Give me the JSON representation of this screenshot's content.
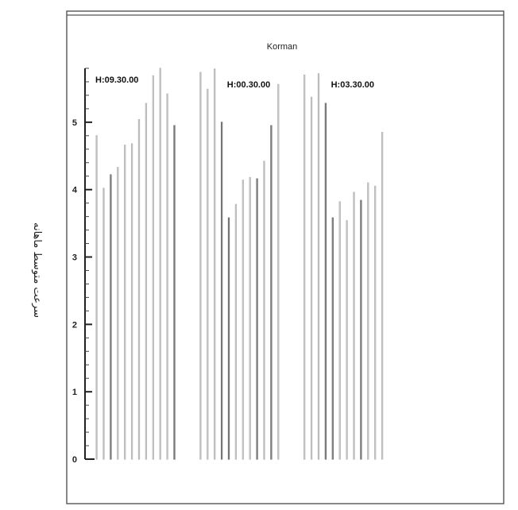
{
  "chart_data": {
    "type": "bar",
    "title": "Korman",
    "ylabel": "سرعت متوسط ماهانه",
    "xlabel": "",
    "ylim": [
      0,
      5.8
    ],
    "yticks": [
      0,
      1,
      2,
      3,
      4,
      5
    ],
    "grid": false,
    "groups": [
      {
        "label": "H:09.30.00",
        "values": [
          4.8,
          4.02,
          4.22,
          4.33,
          4.66,
          4.68,
          5.04,
          5.28,
          5.69,
          5.8,
          5.42,
          4.95
        ]
      },
      {
        "label": "H:00.30.00",
        "values": [
          5.74,
          5.49,
          5.79,
          5.0,
          3.58,
          3.78,
          4.14,
          4.18,
          4.16,
          4.42,
          4.95,
          5.56
        ]
      },
      {
        "label": "H:03.30.00",
        "values": [
          5.7,
          5.37,
          5.72,
          5.28,
          3.58,
          3.82,
          3.54,
          3.96,
          3.84,
          4.1,
          4.05,
          4.85
        ]
      }
    ],
    "colors": {
      "light": "#b8b8b8",
      "dark": "#6e6e6e",
      "axis": "#222222"
    },
    "bar_shades": [
      "light",
      "light",
      "dark",
      "light",
      "light",
      "light",
      "light",
      "light",
      "light",
      "light",
      "light",
      "dark",
      "light",
      "light",
      "light",
      "dark",
      "dark",
      "light",
      "light",
      "light",
      "dark",
      "light",
      "dark",
      "light",
      "light",
      "light",
      "light",
      "dark",
      "dark",
      "light",
      "light",
      "light",
      "dark",
      "light",
      "light",
      "light"
    ]
  }
}
